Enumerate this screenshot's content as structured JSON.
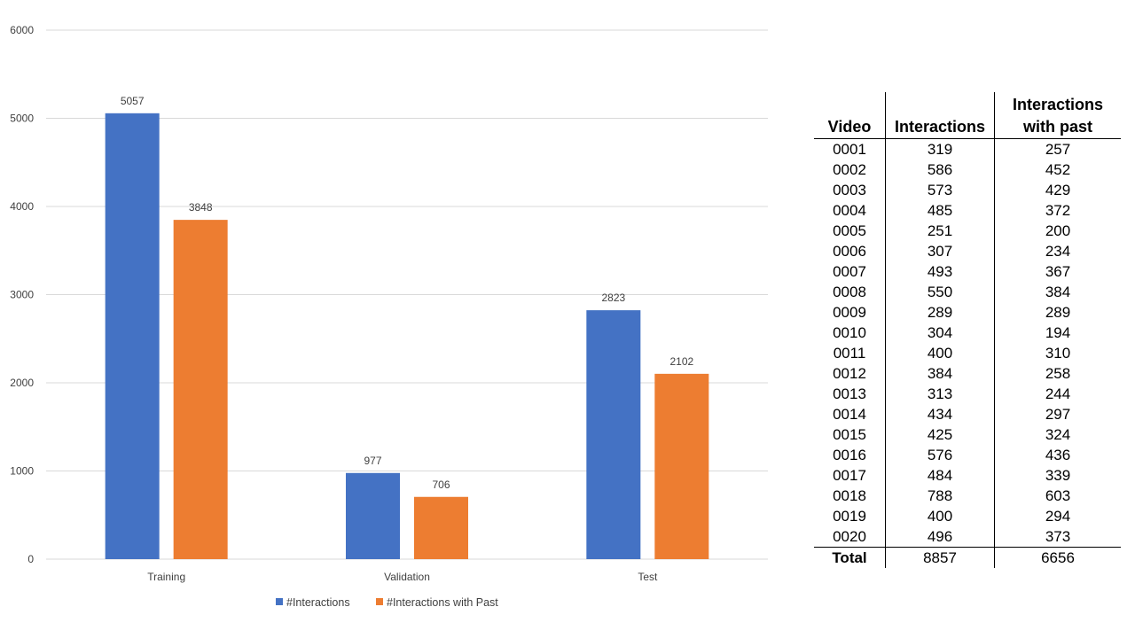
{
  "chart_data": [
    {
      "type": "bar",
      "categories": [
        "Training",
        "Validation",
        "Test"
      ],
      "series": [
        {
          "name": "#Interactions",
          "values": [
            5057,
            977,
            2823
          ]
        },
        {
          "name": "#Interactions with Past",
          "values": [
            3848,
            706,
            2102
          ]
        }
      ],
      "ylim": [
        0,
        6000
      ],
      "yticks": [
        0,
        1000,
        2000,
        3000,
        4000,
        5000,
        6000
      ],
      "grid": true,
      "legend": "bottom",
      "colors": [
        "#4472C4",
        "#ED7D31"
      ]
    },
    {
      "type": "table",
      "columns": [
        "Video",
        "Interactions",
        "Interactions with past"
      ],
      "rows": [
        [
          "0001",
          "319",
          "257"
        ],
        [
          "0002",
          "586",
          "452"
        ],
        [
          "0003",
          "573",
          "429"
        ],
        [
          "0004",
          "485",
          "372"
        ],
        [
          "0005",
          "251",
          "200"
        ],
        [
          "0006",
          "307",
          "234"
        ],
        [
          "0007",
          "493",
          "367"
        ],
        [
          "0008",
          "550",
          "384"
        ],
        [
          "0009",
          "289",
          "289"
        ],
        [
          "0010",
          "304",
          "194"
        ],
        [
          "0011",
          "400",
          "310"
        ],
        [
          "0012",
          "384",
          "258"
        ],
        [
          "0013",
          "313",
          "244"
        ],
        [
          "0014",
          "434",
          "297"
        ],
        [
          "0015",
          "425",
          "324"
        ],
        [
          "0016",
          "576",
          "436"
        ],
        [
          "0017",
          "484",
          "339"
        ],
        [
          "0018",
          "788",
          "603"
        ],
        [
          "0019",
          "400",
          "294"
        ],
        [
          "0020",
          "496",
          "373"
        ]
      ],
      "total": [
        "Total",
        "8857",
        "6656"
      ]
    }
  ]
}
